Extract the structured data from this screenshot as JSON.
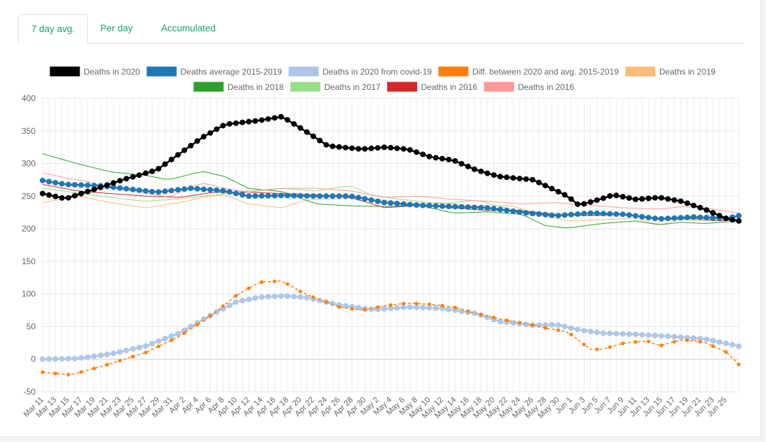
{
  "tabs": [
    {
      "label": "7 day avg."
    },
    {
      "label": "Per day"
    },
    {
      "label": "Accumulated"
    }
  ],
  "chart_data": {
    "type": "line",
    "title": "",
    "xlabel": "",
    "ylabel": "",
    "ylim": [
      -50,
      400
    ],
    "yticks": [
      -50,
      0,
      50,
      100,
      150,
      200,
      250,
      300,
      350,
      400
    ],
    "grid": true,
    "legend_position": "top",
    "x_tick_labels": [
      "Mar 11",
      "Mar 13",
      "Mar 15",
      "Mar 17",
      "Mar 19",
      "Mar 21",
      "Mar 23",
      "Mar 25",
      "Mar 27",
      "Mar 29",
      "Mar 31",
      "Apr 2",
      "Apr 4",
      "Apr 6",
      "Apr 8",
      "Apr 10",
      "Apr 12",
      "Apr 14",
      "Apr 16",
      "Apr 18",
      "Apr 20",
      "Apr 22",
      "Apr 24",
      "Apr 26",
      "Apr 28",
      "Apr 30",
      "May 2",
      "May 4",
      "May 6",
      "May 8",
      "May 10",
      "May 12",
      "May 14",
      "May 16",
      "May 18",
      "May 20",
      "May 22",
      "May 24",
      "May 26",
      "May 28",
      "May 30",
      "Jun 1",
      "Jun 3",
      "Jun 5",
      "Jun 7",
      "Jun 9",
      "Jun 11",
      "Jun 13",
      "Jun 15",
      "Jun 17",
      "Jun 19",
      "Jun 21",
      "Jun 23",
      "Jun 25"
    ],
    "x_start_label": "Mar 11",
    "num_points": 109,
    "series": [
      {
        "name": "Deaths in 2020",
        "color": "#000000",
        "style": "markers",
        "keypoints": [
          [
            0,
            254
          ],
          [
            4,
            246
          ],
          [
            10,
            263
          ],
          [
            14,
            275
          ],
          [
            20,
            290
          ],
          [
            28,
            340
          ],
          [
            32,
            360
          ],
          [
            38,
            366
          ],
          [
            42,
            372
          ],
          [
            46,
            350
          ],
          [
            50,
            327
          ],
          [
            56,
            322
          ],
          [
            60,
            325
          ],
          [
            64,
            322
          ],
          [
            68,
            310
          ],
          [
            72,
            305
          ],
          [
            76,
            290
          ],
          [
            80,
            280
          ],
          [
            86,
            275
          ],
          [
            92,
            250
          ],
          [
            94,
            236
          ],
          [
            98,
            246
          ],
          [
            100,
            252
          ],
          [
            104,
            245
          ],
          [
            108,
            248
          ],
          [
            112,
            242
          ],
          [
            116,
            230
          ],
          [
            120,
            215
          ],
          [
            122,
            212
          ]
        ]
      },
      {
        "name": "Deaths average 2015-2019",
        "color": "#1f77b4",
        "style": "markers",
        "keypoints": [
          [
            0,
            274
          ],
          [
            4,
            268
          ],
          [
            10,
            266
          ],
          [
            14,
            262
          ],
          [
            20,
            256
          ],
          [
            26,
            262
          ],
          [
            32,
            258
          ],
          [
            36,
            250
          ],
          [
            42,
            251
          ],
          [
            48,
            250
          ],
          [
            54,
            250
          ],
          [
            60,
            240
          ],
          [
            66,
            236
          ],
          [
            72,
            234
          ],
          [
            78,
            232
          ],
          [
            84,
            225
          ],
          [
            90,
            220
          ],
          [
            96,
            224
          ],
          [
            102,
            222
          ],
          [
            108,
            215
          ],
          [
            114,
            218
          ],
          [
            120,
            216
          ],
          [
            122,
            220
          ]
        ]
      },
      {
        "name": "Deaths in 2020 from covid-19",
        "color": "#aec7e8",
        "style": "markers",
        "keypoints": [
          [
            0,
            0
          ],
          [
            6,
            1
          ],
          [
            12,
            8
          ],
          [
            18,
            20
          ],
          [
            24,
            40
          ],
          [
            30,
            70
          ],
          [
            34,
            88
          ],
          [
            38,
            95
          ],
          [
            42,
            97
          ],
          [
            46,
            95
          ],
          [
            52,
            83
          ],
          [
            58,
            76
          ],
          [
            64,
            80
          ],
          [
            70,
            78
          ],
          [
            76,
            70
          ],
          [
            80,
            58
          ],
          [
            86,
            52
          ],
          [
            90,
            53
          ],
          [
            94,
            45
          ],
          [
            98,
            40
          ],
          [
            104,
            38
          ],
          [
            110,
            35
          ],
          [
            116,
            31
          ],
          [
            122,
            20
          ]
        ]
      },
      {
        "name": "Diff. between 2020 and avg. 2015-2019",
        "color": "#ff7f0e",
        "style": "dashed-markers",
        "keypoints": [
          [
            0,
            -20
          ],
          [
            5,
            -24
          ],
          [
            10,
            -12
          ],
          [
            18,
            10
          ],
          [
            24,
            35
          ],
          [
            30,
            70
          ],
          [
            34,
            98
          ],
          [
            38,
            118
          ],
          [
            42,
            120
          ],
          [
            46,
            100
          ],
          [
            52,
            80
          ],
          [
            56,
            75
          ],
          [
            60,
            82
          ],
          [
            64,
            86
          ],
          [
            68,
            84
          ],
          [
            72,
            80
          ],
          [
            76,
            70
          ],
          [
            80,
            62
          ],
          [
            86,
            52
          ],
          [
            88,
            48
          ],
          [
            92,
            42
          ],
          [
            96,
            15
          ],
          [
            98,
            15
          ],
          [
            102,
            25
          ],
          [
            106,
            28
          ],
          [
            108,
            20
          ],
          [
            112,
            30
          ],
          [
            116,
            26
          ],
          [
            120,
            10
          ],
          [
            122,
            -8
          ]
        ]
      },
      {
        "name": "Deaths in 2019",
        "color": "#ffbb78",
        "style": "line",
        "keypoints": [
          [
            0,
            240
          ],
          [
            6,
            250
          ],
          [
            12,
            240
          ],
          [
            18,
            232
          ],
          [
            24,
            240
          ],
          [
            28,
            248
          ],
          [
            32,
            252
          ],
          [
            36,
            238
          ],
          [
            42,
            232
          ],
          [
            46,
            244
          ],
          [
            52,
            246
          ],
          [
            58,
            246
          ],
          [
            64,
            238
          ],
          [
            70,
            240
          ],
          [
            76,
            234
          ],
          [
            82,
            236
          ],
          [
            86,
            224
          ],
          [
            92,
            212
          ],
          [
            98,
            214
          ],
          [
            104,
            216
          ],
          [
            108,
            206
          ],
          [
            112,
            214
          ],
          [
            116,
            212
          ],
          [
            122,
            218
          ]
        ]
      },
      {
        "name": "Deaths in 2018",
        "color": "#2ca02c",
        "style": "line",
        "keypoints": [
          [
            0,
            315
          ],
          [
            6,
            300
          ],
          [
            12,
            287
          ],
          [
            18,
            282
          ],
          [
            22,
            275
          ],
          [
            28,
            288
          ],
          [
            32,
            280
          ],
          [
            36,
            262
          ],
          [
            42,
            257
          ],
          [
            48,
            238
          ],
          [
            54,
            235
          ],
          [
            60,
            234
          ],
          [
            66,
            236
          ],
          [
            72,
            224
          ],
          [
            78,
            226
          ],
          [
            84,
            222
          ],
          [
            88,
            205
          ],
          [
            92,
            201
          ],
          [
            98,
            208
          ],
          [
            104,
            212
          ],
          [
            108,
            206
          ],
          [
            112,
            210
          ],
          [
            116,
            208
          ],
          [
            122,
            212
          ]
        ]
      },
      {
        "name": "Deaths in 2017",
        "color": "#98df8a",
        "style": "line",
        "keypoints": [
          [
            0,
            262
          ],
          [
            6,
            255
          ],
          [
            12,
            248
          ],
          [
            18,
            242
          ],
          [
            24,
            246
          ],
          [
            30,
            252
          ],
          [
            36,
            258
          ],
          [
            42,
            262
          ],
          [
            48,
            258
          ],
          [
            54,
            266
          ],
          [
            58,
            250
          ],
          [
            64,
            244
          ],
          [
            70,
            238
          ],
          [
            76,
            244
          ],
          [
            82,
            230
          ],
          [
            88,
            222
          ],
          [
            94,
            220
          ],
          [
            100,
            222
          ],
          [
            106,
            218
          ],
          [
            112,
            214
          ],
          [
            118,
            215
          ],
          [
            122,
            220
          ]
        ]
      },
      {
        "name": "Deaths in 2016",
        "color": "#d62728",
        "style": "line",
        "keypoints": [
          [
            0,
            268
          ],
          [
            6,
            258
          ],
          [
            12,
            254
          ],
          [
            18,
            250
          ],
          [
            24,
            248
          ],
          [
            30,
            256
          ],
          [
            36,
            256
          ],
          [
            42,
            254
          ],
          [
            48,
            252
          ],
          [
            54,
            248
          ],
          [
            60,
            232
          ],
          [
            66,
            236
          ],
          [
            72,
            232
          ],
          [
            78,
            228
          ],
          [
            84,
            228
          ],
          [
            90,
            222
          ],
          [
            96,
            220
          ],
          [
            102,
            222
          ],
          [
            108,
            214
          ],
          [
            114,
            216
          ],
          [
            118,
            212
          ],
          [
            122,
            214
          ]
        ]
      },
      {
        "name": "Deaths in 2016",
        "color": "#ff9896",
        "style": "line",
        "keypoints": [
          [
            0,
            286
          ],
          [
            4,
            278
          ],
          [
            8,
            272
          ],
          [
            12,
            262
          ],
          [
            18,
            255
          ],
          [
            22,
            248
          ],
          [
            26,
            264
          ],
          [
            28,
            270
          ],
          [
            32,
            262
          ],
          [
            36,
            256
          ],
          [
            42,
            262
          ],
          [
            48,
            262
          ],
          [
            54,
            258
          ],
          [
            60,
            248
          ],
          [
            66,
            250
          ],
          [
            72,
            245
          ],
          [
            78,
            242
          ],
          [
            84,
            238
          ],
          [
            90,
            240
          ],
          [
            96,
            236
          ],
          [
            102,
            232
          ],
          [
            108,
            230
          ],
          [
            112,
            234
          ],
          [
            116,
            232
          ],
          [
            122,
            224
          ]
        ]
      }
    ]
  }
}
